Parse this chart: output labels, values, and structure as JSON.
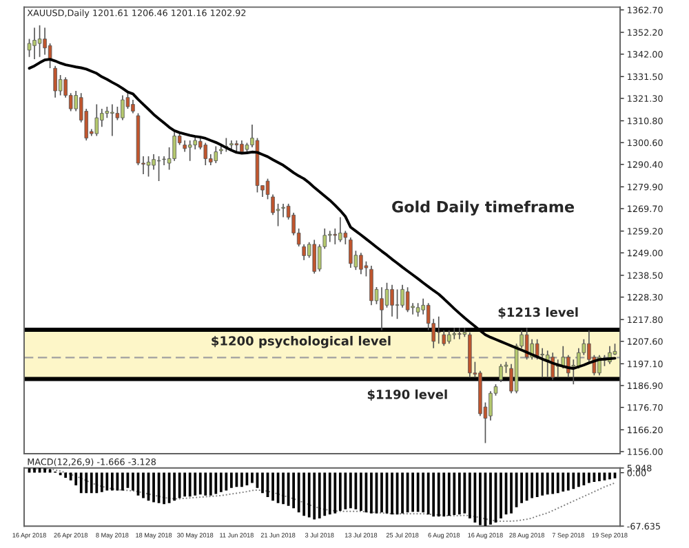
{
  "chart_data": [
    {
      "type": "candlestick",
      "title": "Gold Daily timeframe",
      "annotations": [
        "XAUUSD,Daily 1201.61 1206.46 1201.16 1202.92"
      ],
      "categories": [
        null,
        null,
        null,
        null,
        null,
        null,
        null,
        null,
        null,
        null,
        null,
        null,
        null,
        null,
        null,
        null,
        null,
        null,
        null,
        null,
        null,
        null,
        null,
        null,
        null,
        null,
        null,
        null,
        null,
        null,
        null,
        null,
        null,
        null,
        null,
        null,
        null,
        null,
        null,
        null,
        null,
        null,
        null,
        null,
        null,
        null,
        null,
        null,
        null,
        null,
        null,
        null,
        null,
        null,
        null,
        null,
        null,
        null,
        null,
        null,
        null,
        null,
        null,
        null,
        null,
        null,
        null,
        null,
        null,
        null,
        null,
        null,
        null,
        null,
        null,
        null,
        null,
        null,
        null,
        null,
        null,
        null,
        null,
        null,
        null,
        null,
        null,
        null,
        null,
        null,
        null,
        null,
        null,
        null,
        null,
        null,
        null,
        null,
        null,
        null,
        null,
        null,
        null,
        null,
        null,
        null,
        null,
        null,
        null,
        null,
        null,
        null,
        null,
        null
      ],
      "ohlc": [
        [
          1343.9,
          1349.1,
          1340.7,
          1347.0
        ],
        [
          1346.0,
          1354.4,
          1339.6,
          1348.5
        ],
        [
          1347.0,
          1355.5,
          1340.7,
          1349.1
        ],
        [
          1349.1,
          1354.4,
          1341.7,
          1344.9
        ],
        [
          1346.0,
          1347.0,
          1335.4,
          1339.6
        ],
        [
          1335.4,
          1336.5,
          1321.7,
          1324.8
        ],
        [
          1324.8,
          1332.2,
          1322.7,
          1330.1
        ],
        [
          1330.1,
          1331.2,
          1321.7,
          1322.7
        ],
        [
          1322.7,
          1323.8,
          1315.3,
          1316.4
        ],
        [
          1316.4,
          1324.8,
          1315.3,
          1322.7
        ],
        [
          1321.7,
          1323.8,
          1310.1,
          1311.1
        ],
        [
          1315.3,
          1316.4,
          1301.6,
          1302.7
        ],
        [
          1305.8,
          1306.9,
          1303.7,
          1304.8
        ],
        [
          1304.8,
          1318.5,
          1303.7,
          1312.2
        ],
        [
          1311.1,
          1316.4,
          1308.0,
          1314.3
        ],
        [
          1314.3,
          1317.4,
          1312.2,
          1315.3
        ],
        [
          1314.3,
          1318.5,
          1303.7,
          1314.8
        ],
        [
          1314.3,
          1317.4,
          1311.1,
          1312.2
        ],
        [
          1312.2,
          1322.7,
          1311.1,
          1320.6
        ],
        [
          1321.7,
          1323.8,
          1316.4,
          1317.4
        ],
        [
          1318.5,
          1320.6,
          1314.3,
          1315.3
        ],
        [
          1313.2,
          1314.3,
          1290.0,
          1291.0
        ],
        [
          1291.0,
          1294.2,
          1285.8,
          1290.5
        ],
        [
          1290.0,
          1294.2,
          1284.7,
          1291.5
        ],
        [
          1290.0,
          1295.2,
          1287.9,
          1292.7
        ],
        [
          1292.0,
          1294.2,
          1282.6,
          1292.2
        ],
        [
          1292.7,
          1294.2,
          1290.0,
          1292.9
        ],
        [
          1291.0,
          1298.4,
          1287.9,
          1293.1
        ],
        [
          1293.1,
          1305.8,
          1292.0,
          1303.7
        ],
        [
          1303.7,
          1305.8,
          1299.5,
          1300.5
        ],
        [
          1299.5,
          1301.6,
          1296.3,
          1297.8
        ],
        [
          1298.4,
          1301.6,
          1292.0,
          1299.5
        ],
        [
          1299.5,
          1303.7,
          1297.4,
          1301.6
        ],
        [
          1301.2,
          1302.7,
          1297.4,
          1298.4
        ],
        [
          1299.5,
          1300.5,
          1290.0,
          1293.1
        ],
        [
          1293.1,
          1295.2,
          1290.0,
          1291.5
        ],
        [
          1292.1,
          1298.9,
          1291.0,
          1296.3
        ],
        [
          1296.8,
          1299.5,
          1295.2,
          1297.4
        ],
        [
          1298.4,
          1302.7,
          1296.3,
          1298.9
        ],
        [
          1299.5,
          1301.6,
          1297.4,
          1300.1
        ],
        [
          1300.1,
          1301.6,
          1296.3,
          1299.5
        ],
        [
          1299.9,
          1301.6,
          1295.2,
          1296.3
        ],
        [
          1297.4,
          1300.5,
          1295.2,
          1299.5
        ],
        [
          1299.5,
          1309.0,
          1298.4,
          1302.7
        ],
        [
          1301.6,
          1302.7,
          1277.3,
          1280.5
        ],
        [
          1280.5,
          1280.5,
          1275.2,
          1278.4
        ],
        [
          1282.6,
          1283.7,
          1274.1,
          1276.3
        ],
        [
          1275.2,
          1276.3,
          1266.7,
          1267.8
        ],
        [
          1268.8,
          1272.0,
          1261.5,
          1269.4
        ],
        [
          1269.9,
          1272.0,
          1265.7,
          1270.3
        ],
        [
          1270.9,
          1272.0,
          1264.6,
          1265.7
        ],
        [
          1266.7,
          1267.8,
          1257.2,
          1258.3
        ],
        [
          1258.3,
          1260.4,
          1252.0,
          1253.0
        ],
        [
          1251.9,
          1253.0,
          1245.6,
          1247.7
        ],
        [
          1247.7,
          1254.0,
          1246.7,
          1253.0
        ],
        [
          1253.0,
          1255.1,
          1239.3,
          1240.3
        ],
        [
          1241.4,
          1253.0,
          1240.3,
          1251.9
        ],
        [
          1251.9,
          1260.4,
          1250.9,
          1257.2
        ],
        [
          1257.2,
          1259.3,
          1254.1,
          1257.7
        ],
        [
          1257.7,
          1260.4,
          1253.0,
          1257.2
        ],
        [
          1255.1,
          1265.7,
          1254.1,
          1258.3
        ],
        [
          1258.3,
          1259.3,
          1253.0,
          1256.2
        ],
        [
          1255.1,
          1256.2,
          1242.0,
          1244.0
        ],
        [
          1242.4,
          1250.0,
          1241.0,
          1247.9
        ],
        [
          1247.9,
          1249.0,
          1239.0,
          1241.3
        ],
        [
          1243.0,
          1245.0,
          1238.0,
          1242.0
        ],
        [
          1241.3,
          1243.0,
          1224.5,
          1226.6
        ],
        [
          1226.6,
          1233.0,
          1225.0,
          1231.9
        ],
        [
          1227.6,
          1232.9,
          1212.8,
          1222.3
        ],
        [
          1224.5,
          1235.0,
          1223.4,
          1231.9
        ],
        [
          1231.9,
          1234.0,
          1219.2,
          1224.5
        ],
        [
          1224.5,
          1231.9,
          1218.1,
          1224.7
        ],
        [
          1224.5,
          1234.0,
          1223.4,
          1231.9
        ],
        [
          1230.8,
          1232.9,
          1221.3,
          1222.3
        ],
        [
          1223.4,
          1225.5,
          1220.2,
          1224.0
        ],
        [
          1221.3,
          1225.5,
          1219.2,
          1223.4
        ],
        [
          1222.3,
          1227.6,
          1220.2,
          1224.5
        ],
        [
          1224.5,
          1225.5,
          1212.8,
          1216.0
        ],
        [
          1216.0,
          1218.1,
          1204.4,
          1207.6
        ],
        [
          1212.0,
          1219.2,
          1206.5,
          1211.8
        ],
        [
          1210.7,
          1212.8,
          1205.5,
          1206.5
        ],
        [
          1207.6,
          1212.8,
          1206.5,
          1210.7
        ],
        [
          1210.7,
          1213.9,
          1208.6,
          1211.2
        ],
        [
          1211.2,
          1213.9,
          1208.6,
          1210.9
        ],
        [
          1210.9,
          1213.9,
          1209.7,
          1211.8
        ],
        [
          1210.7,
          1211.8,
          1190.7,
          1192.8
        ],
        [
          1192.8,
          1198.0,
          1190.7,
          1192.2
        ],
        [
          1192.8,
          1193.8,
          1172.7,
          1173.7
        ],
        [
          1176.9,
          1179.0,
          1160.0,
          1171.6
        ],
        [
          1172.7,
          1184.3,
          1170.6,
          1183.3
        ],
        [
          1183.3,
          1187.5,
          1182.2,
          1186.4
        ],
        [
          1189.6,
          1197.0,
          1188.5,
          1195.9
        ],
        [
          1195.9,
          1198.0,
          1192.8,
          1196.5
        ],
        [
          1194.9,
          1197.0,
          1183.3,
          1184.3
        ],
        [
          1184.3,
          1206.5,
          1183.3,
          1205.4
        ],
        [
          1205.4,
          1212.8,
          1204.4,
          1210.7
        ],
        [
          1210.7,
          1213.9,
          1199.1,
          1200.2
        ],
        [
          1200.2,
          1208.6,
          1199.1,
          1206.5
        ],
        [
          1206.5,
          1208.6,
          1199.1,
          1200.2
        ],
        [
          1201.2,
          1204.4,
          1190.7,
          1201.6
        ],
        [
          1198.0,
          1203.3,
          1190.7,
          1201.2
        ],
        [
          1200.2,
          1202.3,
          1189.6,
          1190.7
        ],
        [
          1195.9,
          1199.1,
          1190.7,
          1196.2
        ],
        [
          1195.9,
          1205.4,
          1194.9,
          1200.2
        ],
        [
          1200.2,
          1201.2,
          1190.7,
          1192.8
        ],
        [
          1195.9,
          1199.1,
          1187.5,
          1196.4
        ],
        [
          1195.9,
          1204.4,
          1194.9,
          1202.3
        ],
        [
          1202.3,
          1208.6,
          1201.2,
          1206.5
        ],
        [
          1206.5,
          1212.8,
          1198.0,
          1199.1
        ],
        [
          1200.2,
          1201.2,
          1191.7,
          1192.8
        ],
        [
          1192.8,
          1201.2,
          1191.7,
          1200.2
        ],
        [
          1198.7,
          1201.2,
          1196.0,
          1199.3
        ],
        [
          1198.0,
          1205.4,
          1197.0,
          1202.3
        ],
        [
          1201.6,
          1206.5,
          1201.2,
          1202.9
        ]
      ],
      "colors": [
        "#b5c96e",
        "#b5c96e",
        "#b5c96e",
        "#c1552d",
        "#c1552d",
        "#c1552d",
        "#b5c96e",
        "#c1552d",
        "#c1552d",
        "#b5c96e",
        "#c1552d",
        "#c1552d",
        "#c1552d",
        "#b5c96e",
        "#b5c96e",
        "#b5c96e",
        "#b5c96e",
        "#c1552d",
        "#b5c96e",
        "#c1552d",
        "#c1552d",
        "#c1552d",
        "#c1552d",
        "#b5c96e",
        "#b5c96e",
        "#b5c96e",
        "#b5c96e",
        "#b5c96e",
        "#b5c96e",
        "#c1552d",
        "#c1552d",
        "#b5c96e",
        "#b5c96e",
        "#c1552d",
        "#c1552d",
        "#c1552d",
        "#b5c96e",
        "#b5c96e",
        "#b5c96e",
        "#b5c96e",
        "#c1552d",
        "#c1552d",
        "#b5c96e",
        "#b5c96e",
        "#c1552d",
        "#c1552d",
        "#c1552d",
        "#c1552d",
        "#b5c96e",
        "#b5c96e",
        "#c1552d",
        "#c1552d",
        "#c1552d",
        "#c1552d",
        "#b5c96e",
        "#c1552d",
        "#b5c96e",
        "#b5c96e",
        "#b5c96e",
        "#c1552d",
        "#b5c96e",
        "#c1552d",
        "#c1552d",
        "#b5c96e",
        "#c1552d",
        "#c1552d",
        "#c1552d",
        "#b5c96e",
        "#c1552d",
        "#b5c96e",
        "#c1552d",
        "#b5c96e",
        "#b5c96e",
        "#c1552d",
        "#b5c96e",
        "#b5c96e",
        "#b5c96e",
        "#c1552d",
        "#c1552d",
        "#c1552d",
        "#c1552d",
        "#b5c96e",
        "#b5c96e",
        "#c1552d",
        "#b5c96e",
        "#c1552d",
        "#c1552d",
        "#c1552d",
        "#c1552d",
        "#b5c96e",
        "#b5c96e",
        "#b5c96e",
        "#b5c96e",
        "#c1552d",
        "#b5c96e",
        "#b5c96e",
        "#c1552d",
        "#b5c96e",
        "#c1552d",
        "#b5c96e",
        "#b5c96e",
        "#c1552d",
        "#b5c96e",
        "#b5c96e",
        "#c1552d",
        "#b5c96e",
        "#b5c96e",
        "#b5c96e",
        "#c1552d",
        "#c1552d",
        "#b5c96e",
        "#b5c96e",
        "#b5c96e",
        "#b5c96e"
      ],
      "series": [
        {
          "type": "line",
          "color": "#000000",
          "values": [
            1335.4,
            1336.5,
            1338,
            1339.3,
            1339.6,
            1338.8,
            1337.8,
            1337,
            1336.5,
            1336,
            1335.6,
            1335,
            1334,
            1333,
            1331.4,
            1330.2,
            1328.8,
            1327.5,
            1326,
            1324.3,
            1323.4,
            1320.8,
            1318.5,
            1316.2,
            1313.8,
            1311.8,
            1309.8,
            1307.8,
            1306.2,
            1305.3,
            1304.6,
            1304,
            1303.5,
            1303.2,
            1302.6,
            1301.6,
            1300.7,
            1299.5,
            1298.2,
            1297,
            1296,
            1295.6,
            1295.8,
            1296.2,
            1296,
            1295,
            1294,
            1292.6,
            1291.3,
            1290,
            1288.3,
            1286.5,
            1285,
            1283.7,
            1281.8,
            1279.6,
            1277.6,
            1275.6,
            1273.6,
            1271.3,
            1268.8,
            1266,
            1261,
            1259.2,
            1257.4,
            1255.5,
            1253.6,
            1251.7,
            1249.8,
            1248,
            1246,
            1244.2,
            1242.3,
            1240.5,
            1238.7,
            1236.9,
            1235,
            1233.2,
            1231.4,
            1229.7,
            1227.5,
            1225.2,
            1222.9,
            1220.7,
            1218.6,
            1216.6,
            1214.6,
            1212.6,
            1210.7,
            1209.5,
            1208.5,
            1207.5,
            1206.5,
            1205.5,
            1204.5,
            1203.5,
            1202.5,
            1201.4,
            1200.4,
            1199.3,
            1198.4,
            1197.4,
            1196.6,
            1195.9,
            1195.3,
            1194.9,
            1195.7,
            1196.5,
            1197.5,
            1198.3,
            1199.1,
            1199.3,
            1199.5,
            1199.7
          ]
        }
      ],
      "ylim": [
        1155,
        1364
      ],
      "yticks": [
        {
          "value": 1362.7,
          "label": "1362.70"
        },
        {
          "value": 1352.2,
          "label": "1352.20"
        },
        {
          "value": 1342.0,
          "label": "1342.00"
        },
        {
          "value": 1331.5,
          "label": "1331.50"
        },
        {
          "value": 1321.3,
          "label": "1321.30"
        },
        {
          "value": 1310.8,
          "label": "1310.80"
        },
        {
          "value": 1300.6,
          "label": "1300.60"
        },
        {
          "value": 1290.4,
          "label": "1290.40"
        },
        {
          "value": 1279.9,
          "label": "1279.90"
        },
        {
          "value": 1269.7,
          "label": "1269.70"
        },
        {
          "value": 1259.2,
          "label": "1259.20"
        },
        {
          "value": 1249.0,
          "label": "1249.00"
        },
        {
          "value": 1238.5,
          "label": "1238.50"
        },
        {
          "value": 1228.3,
          "label": "1228.30"
        },
        {
          "value": 1217.8,
          "label": "1217.80"
        },
        {
          "value": 1207.6,
          "label": "1207.60"
        },
        {
          "value": 1197.1,
          "label": "1197.10"
        },
        {
          "value": 1186.9,
          "label": "1186.90"
        },
        {
          "value": 1176.7,
          "label": "1176.70"
        },
        {
          "value": 1166.2,
          "label": "1166.20"
        },
        {
          "value": 1156.0,
          "label": "1156.00"
        }
      ],
      "bands": [
        {
          "axis": "y",
          "from": 1190,
          "to": 1213,
          "color": "#fdf6c8"
        }
      ],
      "ref_lines": [
        {
          "axis": "y",
          "value": 1213,
          "label": "$1213 level",
          "color": "#000000",
          "line_style": "solid"
        },
        {
          "axis": "y",
          "value": 1200,
          "label": "$1200 psychological level",
          "color": "#a0a0a0",
          "line_style": "dashed"
        },
        {
          "axis": "y",
          "value": 1190,
          "label": "$1190 level",
          "color": "#000000",
          "line_style": "solid"
        }
      ],
      "tick_labels": "y"
    },
    {
      "type": "bar",
      "title": "MACD(12,26,9) -1.666 -3.128",
      "categories": [
        "16 Apr 2018",
        null,
        null,
        null,
        null,
        null,
        null,
        null,
        "26 Apr 2018",
        null,
        null,
        null,
        null,
        null,
        null,
        null,
        "8 May 2018",
        null,
        null,
        null,
        null,
        null,
        null,
        null,
        "18 May 2018",
        null,
        null,
        null,
        null,
        null,
        null,
        null,
        "30 May 2018",
        null,
        null,
        null,
        null,
        null,
        null,
        null,
        "11 Jun 2018",
        null,
        null,
        null,
        null,
        null,
        null,
        null,
        "21 Jun 2018",
        null,
        null,
        null,
        null,
        null,
        null,
        null,
        "3 Jul 2018",
        null,
        null,
        null,
        null,
        null,
        null,
        null,
        "13 Jul 2018",
        null,
        null,
        null,
        null,
        null,
        null,
        null,
        "25 Jul 2018",
        null,
        null,
        null,
        null,
        null,
        null,
        null,
        "6 Aug 2018",
        null,
        null,
        null,
        null,
        null,
        null,
        null,
        "16 Aug 2018",
        null,
        null,
        null,
        null,
        null,
        null,
        null,
        "28 Aug 2018",
        null,
        null,
        null,
        null,
        null,
        null,
        null,
        "7 Sep 2018",
        null,
        null,
        null,
        null,
        null,
        null,
        null,
        "19 Sep 2018",
        null
      ],
      "values": [
        5.5,
        5.9,
        5.9,
        5.5,
        4.5,
        1.5,
        -3.2,
        -6.4,
        -9.7,
        -16.1,
        -25.8,
        -25.8,
        -25.8,
        -25.8,
        -24.5,
        -22.5,
        -22.5,
        -22.5,
        -22.5,
        -19.3,
        -22.5,
        -29.0,
        -32.2,
        -35.4,
        -37.4,
        -38.6,
        -39.9,
        -38.6,
        -35.4,
        -32.2,
        -30.3,
        -30.3,
        -29.0,
        -27.7,
        -29.0,
        -29.0,
        -27.0,
        -24.5,
        -22.5,
        -19.3,
        -18.0,
        -18.0,
        -16.1,
        -12.9,
        -19.3,
        -25.8,
        -30.9,
        -35.4,
        -38.6,
        -39.9,
        -41.9,
        -45.1,
        -50.2,
        -54.7,
        -56.7,
        -59.2,
        -58.0,
        -54.7,
        -52.8,
        -51.5,
        -48.3,
        -46.4,
        -45.1,
        -46.4,
        -48.3,
        -50.2,
        -51.5,
        -51.5,
        -50.2,
        -51.5,
        -52.8,
        -52.8,
        -51.5,
        -50.2,
        -49.6,
        -49.6,
        -50.2,
        -52.8,
        -55.4,
        -55.4,
        -55.4,
        -54.7,
        -53.5,
        -52.8,
        -51.5,
        -58.0,
        -63.1,
        -66.3,
        -67.6,
        -65.7,
        -63.1,
        -58.0,
        -52.8,
        -51.5,
        -43.8,
        -38.6,
        -35.4,
        -32.2,
        -30.9,
        -29.0,
        -27.7,
        -27.0,
        -25.8,
        -23.8,
        -22.5,
        -20.6,
        -18.0,
        -16.1,
        -12.9,
        -11.6,
        -10.9,
        -9.7,
        -8.4,
        -7.1
      ],
      "color": "#000000",
      "series": [
        {
          "type": "line",
          "color": "#808080",
          "line_style": "dotted",
          "values": [
            4,
            4.5,
            5,
            5,
            4.8,
            3.5,
            2,
            0,
            -2,
            -4.5,
            -7,
            -10,
            -13,
            -15.5,
            -17.5,
            -19,
            -20.5,
            -21.5,
            -22,
            -22.5,
            -23,
            -24,
            -25.5,
            -27,
            -28.5,
            -30,
            -31.5,
            -32.5,
            -33,
            -33,
            -32.5,
            -32,
            -31.5,
            -31,
            -30.5,
            -30,
            -29.5,
            -29,
            -28,
            -27,
            -26,
            -25,
            -24,
            -22.5,
            -22,
            -22.5,
            -23.5,
            -25,
            -27,
            -29,
            -31,
            -33,
            -35.5,
            -38,
            -40.5,
            -43,
            -45,
            -46.5,
            -47.5,
            -48.5,
            -49,
            -49,
            -49,
            -49,
            -49,
            -49.5,
            -50,
            -50.5,
            -51,
            -51.5,
            -52,
            -52,
            -52,
            -52,
            -52,
            -52,
            -52,
            -52.5,
            -53,
            -53.5,
            -54,
            -54.5,
            -54.5,
            -54.5,
            -54,
            -54.5,
            -55.5,
            -57,
            -58.5,
            -60,
            -61,
            -61.5,
            -61.5,
            -61.3,
            -61,
            -60,
            -59,
            -57.5,
            -55,
            -53,
            -51,
            -48,
            -45,
            -42,
            -39,
            -36,
            -33,
            -30,
            -27,
            -24,
            -21,
            -18,
            -15.5,
            -13
          ]
        }
      ],
      "ylim": [
        -67.635,
        5.948
      ],
      "yticks": [
        {
          "value": 5.948,
          "label": "5.948"
        },
        {
          "value": 0,
          "label": "0.00"
        },
        {
          "value": -67.635,
          "label": "-67.635"
        }
      ]
    }
  ]
}
